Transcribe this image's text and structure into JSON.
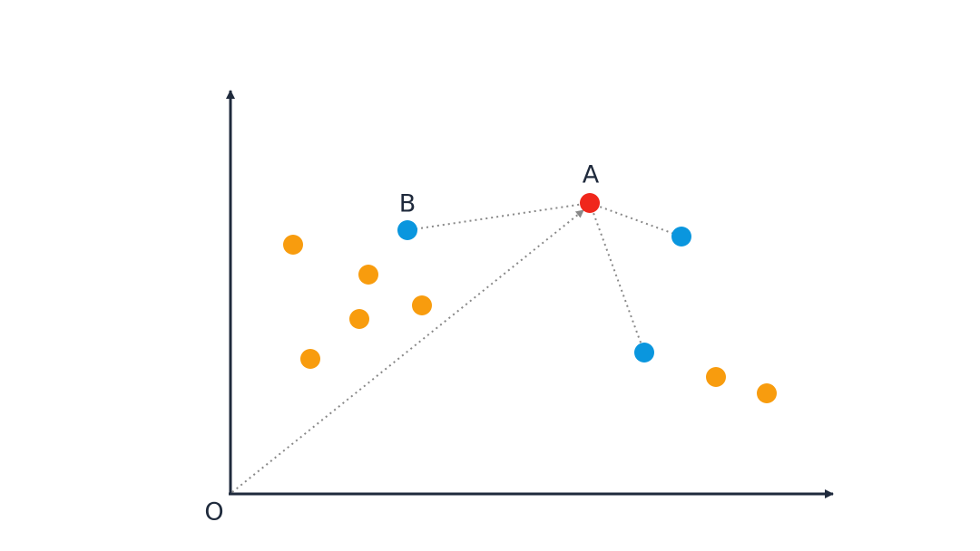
{
  "nodes": [
    {
      "label": "A"
    },
    {
      "label": "B"
    },
    {
      "label": "O"
    }
  ]
}
